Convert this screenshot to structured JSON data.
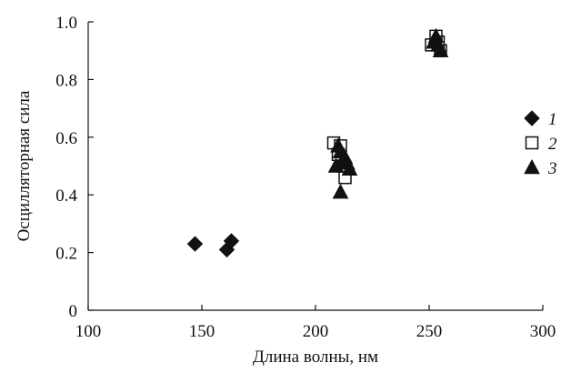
{
  "chart_data": {
    "type": "scatter",
    "title": "",
    "xlabel": "Длина волны, нм",
    "ylabel": "Осцилляторная сила",
    "xlim": [
      100,
      300
    ],
    "ylim": [
      0,
      1.0
    ],
    "xticks": [
      100,
      150,
      200,
      250,
      300
    ],
    "yticks": [
      0,
      0.2,
      0.4,
      0.6,
      0.8,
      1.0
    ],
    "xtick_labels": [
      "100",
      "150",
      "200",
      "250",
      "300"
    ],
    "ytick_labels": [
      "0",
      "0.2",
      "0.4",
      "0.6",
      "0.8",
      "1.0"
    ],
    "grid": false,
    "legend_position": "right",
    "series": [
      {
        "name": "1",
        "marker": "diamond",
        "color": "#111111",
        "points": [
          {
            "x": 147,
            "y": 0.23
          },
          {
            "x": 161,
            "y": 0.21
          },
          {
            "x": 163,
            "y": 0.24
          }
        ]
      },
      {
        "name": "2",
        "marker": "open-square",
        "color": "#111111",
        "points": [
          {
            "x": 208,
            "y": 0.58
          },
          {
            "x": 210,
            "y": 0.54
          },
          {
            "x": 211,
            "y": 0.57
          },
          {
            "x": 212,
            "y": 0.5
          },
          {
            "x": 213,
            "y": 0.46
          },
          {
            "x": 251,
            "y": 0.92
          },
          {
            "x": 253,
            "y": 0.95
          },
          {
            "x": 254,
            "y": 0.93
          },
          {
            "x": 255,
            "y": 0.9
          }
        ]
      },
      {
        "name": "3",
        "marker": "triangle",
        "color": "#111111",
        "points": [
          {
            "x": 209,
            "y": 0.5
          },
          {
            "x": 210,
            "y": 0.57
          },
          {
            "x": 211,
            "y": 0.55
          },
          {
            "x": 211,
            "y": 0.41
          },
          {
            "x": 212,
            "y": 0.52
          },
          {
            "x": 213,
            "y": 0.53
          },
          {
            "x": 214,
            "y": 0.51
          },
          {
            "x": 215,
            "y": 0.49
          },
          {
            "x": 252,
            "y": 0.93
          },
          {
            "x": 253,
            "y": 0.95
          },
          {
            "x": 254,
            "y": 0.92
          },
          {
            "x": 255,
            "y": 0.9
          }
        ]
      }
    ]
  }
}
